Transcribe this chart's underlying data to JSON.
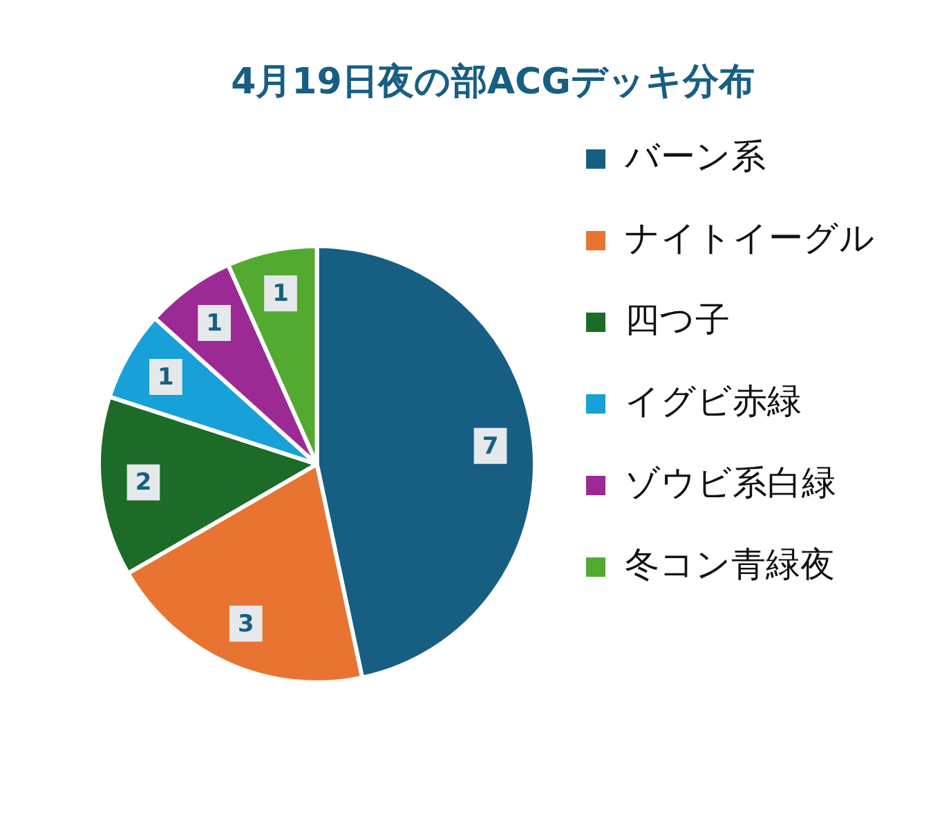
{
  "chart_data": {
    "type": "pie",
    "title": "4月19日夜の部ACGデッキ分布",
    "categories": [
      "バーン系",
      "ナイトイーグル",
      "四つ子",
      "イグビ赤緑",
      "ゾウビ系白緑",
      "冬コン青緑夜"
    ],
    "values": [
      7,
      3,
      2,
      1,
      1,
      1
    ],
    "colors": [
      "#175f82",
      "#e97432",
      "#1c6b28",
      "#18a0d8",
      "#9c2a94",
      "#52aa30"
    ],
    "data_labels": true,
    "legend": "right"
  }
}
